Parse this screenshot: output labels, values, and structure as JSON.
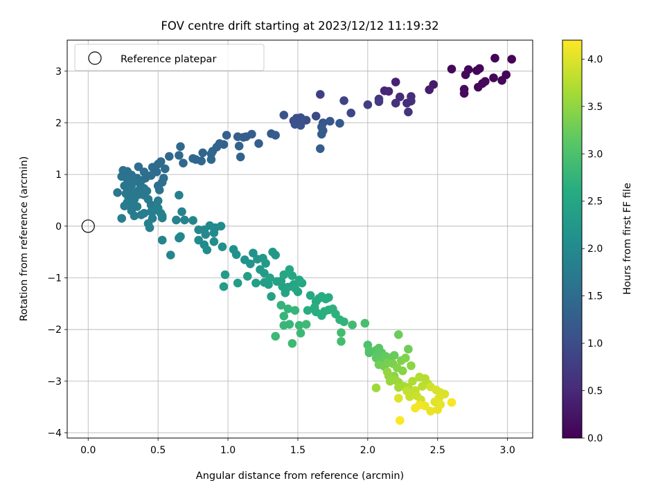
{
  "chart_data": {
    "type": "scatter",
    "title": "FOV centre drift starting at 2023/12/12 11:19:32",
    "xlabel": "Angular distance from reference (arcmin)",
    "ylabel": "Rotation from reference (arcmin)",
    "xlim": [
      -0.15,
      3.18
    ],
    "ylim": [
      -4.1,
      3.6
    ],
    "xticks": [
      0.0,
      0.5,
      1.0,
      1.5,
      2.0,
      2.5,
      3.0
    ],
    "xtick_labels": [
      "0.0",
      "0.5",
      "1.0",
      "1.5",
      "2.0",
      "2.5",
      "3.0"
    ],
    "yticks": [
      -4,
      -3,
      -2,
      -1,
      0,
      1,
      2,
      3
    ],
    "ytick_labels": [
      "−4",
      "−3",
      "−2",
      "−1",
      "0",
      "1",
      "2",
      "3"
    ],
    "grid": true,
    "legend": {
      "placement": "top-left",
      "entries": [
        "Reference platepar"
      ]
    },
    "reference_point": {
      "name": "Reference platepar",
      "x": 0.0,
      "y": 0.0
    },
    "colorbar": {
      "label": "Hours from first FF file",
      "colormap": "viridis",
      "range": [
        0.0,
        4.2
      ],
      "ticks": [
        0.0,
        0.5,
        1.0,
        1.5,
        2.0,
        2.5,
        3.0,
        3.5,
        4.0
      ],
      "tick_labels": [
        "0.0",
        "0.5",
        "1.0",
        "1.5",
        "2.0",
        "2.5",
        "3.0",
        "3.5",
        "4.0"
      ]
    },
    "points": [
      [
        2.91,
        3.25,
        0.03
      ],
      [
        3.03,
        3.23,
        0.03
      ],
      [
        2.8,
        3.05,
        0.05
      ],
      [
        2.78,
        3.01,
        0.05
      ],
      [
        2.72,
        3.03,
        0.06
      ],
      [
        2.7,
        2.93,
        0.07
      ],
      [
        2.6,
        3.04,
        0.08
      ],
      [
        2.9,
        2.87,
        0.06
      ],
      [
        2.99,
        2.93,
        0.05
      ],
      [
        2.96,
        2.82,
        0.06
      ],
      [
        2.82,
        2.76,
        0.07
      ],
      [
        2.79,
        2.69,
        0.08
      ],
      [
        2.84,
        2.8,
        0.09
      ],
      [
        2.69,
        2.65,
        0.12
      ],
      [
        2.69,
        2.57,
        0.13
      ],
      [
        2.47,
        2.74,
        0.3
      ],
      [
        2.44,
        2.64,
        0.35
      ],
      [
        2.2,
        2.79,
        0.4
      ],
      [
        2.12,
        2.62,
        0.45
      ],
      [
        2.15,
        2.61,
        0.47
      ],
      [
        2.23,
        2.5,
        0.52
      ],
      [
        2.31,
        2.51,
        0.56
      ],
      [
        2.31,
        2.42,
        0.58
      ],
      [
        2.28,
        2.38,
        0.55
      ],
      [
        2.2,
        2.38,
        0.6
      ],
      [
        2.29,
        2.21,
        0.65
      ],
      [
        2.08,
        2.46,
        0.7
      ],
      [
        2.08,
        2.41,
        0.72
      ],
      [
        2.0,
        2.35,
        0.78
      ],
      [
        1.66,
        2.55,
        0.8
      ],
      [
        1.83,
        2.43,
        0.85
      ],
      [
        1.88,
        2.19,
        0.9
      ],
      [
        1.63,
        2.13,
        0.95
      ],
      [
        1.56,
        2.05,
        1.0
      ],
      [
        1.49,
        2.09,
        1.02
      ],
      [
        1.52,
        2.1,
        1.03
      ],
      [
        1.47,
        2.04,
        1.05
      ],
      [
        1.48,
        1.97,
        1.06
      ],
      [
        1.52,
        1.95,
        1.08
      ],
      [
        1.52,
        2.0,
        1.08
      ],
      [
        1.4,
        2.15,
        1.1
      ],
      [
        1.49,
        2.03,
        1.05
      ],
      [
        1.68,
        2.0,
        1.12
      ],
      [
        1.73,
        2.03,
        1.15
      ],
      [
        1.8,
        1.99,
        1.18
      ],
      [
        1.67,
        1.92,
        1.2
      ],
      [
        1.68,
        1.85,
        1.22
      ],
      [
        1.67,
        1.78,
        1.23
      ],
      [
        1.66,
        1.5,
        1.24
      ],
      [
        1.31,
        1.79,
        1.2
      ],
      [
        1.34,
        1.76,
        1.22
      ],
      [
        1.17,
        1.78,
        1.24
      ],
      [
        1.13,
        1.73,
        1.25
      ],
      [
        1.07,
        1.73,
        1.26
      ],
      [
        1.11,
        1.72,
        1.27
      ],
      [
        1.22,
        1.6,
        1.28
      ],
      [
        0.99,
        1.76,
        1.3
      ],
      [
        0.97,
        1.58,
        1.32
      ],
      [
        0.94,
        1.6,
        1.33
      ],
      [
        1.08,
        1.55,
        1.34
      ],
      [
        1.09,
        1.34,
        1.35
      ],
      [
        0.92,
        1.53,
        1.36
      ],
      [
        0.89,
        1.45,
        1.37
      ],
      [
        0.82,
        1.42,
        1.38
      ],
      [
        0.88,
        1.4,
        1.4
      ],
      [
        0.88,
        1.29,
        1.41
      ],
      [
        0.75,
        1.31,
        1.42
      ],
      [
        0.77,
        1.29,
        1.43
      ],
      [
        0.81,
        1.26,
        1.43
      ],
      [
        0.68,
        1.22,
        1.44
      ],
      [
        0.66,
        1.54,
        1.45
      ],
      [
        0.65,
        1.37,
        1.45
      ],
      [
        0.58,
        1.35,
        1.46
      ],
      [
        0.52,
        1.25,
        1.47
      ],
      [
        0.5,
        1.2,
        1.48
      ],
      [
        0.46,
        1.14,
        1.49
      ],
      [
        0.55,
        1.11,
        1.5
      ],
      [
        0.49,
        1.05,
        1.5
      ],
      [
        0.45,
        0.98,
        1.51
      ],
      [
        0.36,
        1.15,
        1.52
      ],
      [
        0.4,
        1.05,
        1.52
      ],
      [
        0.41,
        0.93,
        1.53
      ],
      [
        0.38,
        0.88,
        1.54
      ],
      [
        0.35,
        0.93,
        1.55
      ],
      [
        0.54,
        0.93,
        1.55
      ],
      [
        0.53,
        0.85,
        1.55
      ],
      [
        0.5,
        0.78,
        1.56
      ],
      [
        0.51,
        0.7,
        1.57
      ],
      [
        0.25,
        1.08,
        1.58
      ],
      [
        0.28,
        1.06,
        1.58
      ],
      [
        0.31,
        0.99,
        1.59
      ],
      [
        0.24,
        0.96,
        1.6
      ],
      [
        0.28,
        0.91,
        1.61
      ],
      [
        0.32,
        0.88,
        1.62
      ],
      [
        0.3,
        0.84,
        1.63
      ],
      [
        0.37,
        0.83,
        1.63
      ],
      [
        0.4,
        0.73,
        1.64
      ],
      [
        0.31,
        0.79,
        1.64
      ],
      [
        0.26,
        0.78,
        1.65
      ],
      [
        0.3,
        0.72,
        1.66
      ],
      [
        0.36,
        0.69,
        1.66
      ],
      [
        0.42,
        0.68,
        1.67
      ],
      [
        0.31,
        0.66,
        1.67
      ],
      [
        0.27,
        0.63,
        1.68
      ],
      [
        0.21,
        0.65,
        1.68
      ],
      [
        0.36,
        0.61,
        1.69
      ],
      [
        0.38,
        0.65,
        1.69
      ],
      [
        0.4,
        0.6,
        1.7
      ],
      [
        0.29,
        0.55,
        1.7
      ],
      [
        0.33,
        0.52,
        1.71
      ],
      [
        0.43,
        0.52,
        1.71
      ],
      [
        0.28,
        0.46,
        1.72
      ],
      [
        0.31,
        0.4,
        1.72
      ],
      [
        0.35,
        0.38,
        1.73
      ],
      [
        0.45,
        0.41,
        1.73
      ],
      [
        0.5,
        0.49,
        1.74
      ],
      [
        0.26,
        0.39,
        1.74
      ],
      [
        0.31,
        0.3,
        1.75
      ],
      [
        0.33,
        0.2,
        1.76
      ],
      [
        0.4,
        0.25,
        1.76
      ],
      [
        0.38,
        0.22,
        1.77
      ],
      [
        0.24,
        0.15,
        1.77
      ],
      [
        0.46,
        0.15,
        1.78
      ],
      [
        0.45,
        0.28,
        1.78
      ],
      [
        0.5,
        0.35,
        1.79
      ],
      [
        0.47,
        0.3,
        1.8
      ],
      [
        0.43,
        0.05,
        1.82
      ],
      [
        0.44,
        -0.03,
        1.83
      ],
      [
        0.53,
        0.2,
        1.83
      ],
      [
        0.52,
        0.25,
        1.84
      ],
      [
        0.53,
        0.16,
        1.85
      ],
      [
        0.65,
        0.6,
        1.85
      ],
      [
        0.67,
        0.28,
        1.86
      ],
      [
        0.63,
        0.12,
        1.87
      ],
      [
        0.69,
        0.12,
        1.88
      ],
      [
        0.75,
        0.11,
        1.9
      ],
      [
        0.53,
        -0.27,
        1.9
      ],
      [
        0.59,
        -0.56,
        1.92
      ],
      [
        0.65,
        -0.23,
        1.92
      ],
      [
        0.66,
        -0.2,
        1.93
      ],
      [
        0.79,
        -0.07,
        1.95
      ],
      [
        0.83,
        -0.07,
        1.96
      ],
      [
        0.84,
        -0.16,
        1.97
      ],
      [
        0.87,
        0.01,
        1.98
      ],
      [
        0.91,
        -0.03,
        2.0
      ],
      [
        0.9,
        -0.13,
        2.0
      ],
      [
        0.95,
        0.0,
        2.01
      ],
      [
        0.79,
        -0.27,
        2.02
      ],
      [
        0.83,
        -0.36,
        2.03
      ],
      [
        0.85,
        -0.46,
        2.04
      ],
      [
        0.9,
        -0.3,
        2.05
      ],
      [
        0.96,
        -0.4,
        2.07
      ],
      [
        1.04,
        -0.45,
        2.1
      ],
      [
        1.06,
        -0.55,
        2.12
      ],
      [
        1.12,
        -0.65,
        2.14
      ],
      [
        1.18,
        -0.52,
        2.16
      ],
      [
        1.16,
        -0.73,
        2.18
      ],
      [
        1.21,
        -0.64,
        2.2
      ],
      [
        1.25,
        -0.62,
        2.22
      ],
      [
        1.32,
        -0.5,
        2.24
      ],
      [
        1.34,
        -0.56,
        2.25
      ],
      [
        1.27,
        -0.72,
        2.26
      ],
      [
        1.23,
        -0.84,
        2.28
      ],
      [
        1.26,
        -0.91,
        2.3
      ],
      [
        0.98,
        -0.94,
        2.3
      ],
      [
        0.97,
        -1.17,
        2.32
      ],
      [
        1.07,
        -1.1,
        2.33
      ],
      [
        1.14,
        -0.97,
        2.35
      ],
      [
        1.2,
        -1.1,
        2.36
      ],
      [
        1.26,
        -1.09,
        2.37
      ],
      [
        1.29,
        -1.13,
        2.38
      ],
      [
        1.3,
        -1.0,
        2.4
      ],
      [
        1.35,
        -1.07,
        2.41
      ],
      [
        1.31,
        -1.36,
        2.42
      ],
      [
        1.38,
        -1.06,
        2.43
      ],
      [
        1.39,
        -1.17,
        2.44
      ],
      [
        1.43,
        -1.18,
        2.45
      ],
      [
        1.41,
        -1.29,
        2.46
      ],
      [
        1.47,
        -1.13,
        2.47
      ],
      [
        1.5,
        -1.27,
        2.48
      ],
      [
        1.53,
        -1.1,
        2.49
      ],
      [
        1.48,
        -1.2,
        2.5
      ],
      [
        1.4,
        -0.94,
        2.5
      ],
      [
        1.44,
        -0.84,
        2.51
      ],
      [
        1.46,
        -0.96,
        2.52
      ],
      [
        1.51,
        -1.04,
        2.53
      ],
      [
        1.59,
        -1.34,
        2.55
      ],
      [
        1.63,
        -1.46,
        2.56
      ],
      [
        1.65,
        -1.4,
        2.57
      ],
      [
        1.67,
        -1.36,
        2.58
      ],
      [
        1.7,
        -1.41,
        2.6
      ],
      [
        1.72,
        -1.38,
        2.61
      ],
      [
        1.62,
        -1.57,
        2.62
      ],
      [
        1.57,
        -1.63,
        2.63
      ],
      [
        1.63,
        -1.66,
        2.63
      ],
      [
        1.67,
        -1.73,
        2.64
      ],
      [
        1.69,
        -1.65,
        2.65
      ],
      [
        1.72,
        -1.62,
        2.66
      ],
      [
        1.75,
        -1.6,
        2.68
      ],
      [
        1.77,
        -1.7,
        2.7
      ],
      [
        1.8,
        -1.81,
        2.72
      ],
      [
        1.83,
        -1.85,
        2.74
      ],
      [
        1.38,
        -1.53,
        2.75
      ],
      [
        1.43,
        -1.6,
        2.76
      ],
      [
        1.48,
        -1.63,
        2.77
      ],
      [
        1.4,
        -1.74,
        2.78
      ],
      [
        1.44,
        -1.9,
        2.79
      ],
      [
        1.4,
        -1.92,
        2.8
      ],
      [
        1.51,
        -1.92,
        2.82
      ],
      [
        1.52,
        -2.07,
        2.83
      ],
      [
        1.34,
        -2.13,
        2.84
      ],
      [
        1.46,
        -2.27,
        2.85
      ],
      [
        1.56,
        -1.9,
        2.86
      ],
      [
        1.89,
        -1.91,
        2.88
      ],
      [
        1.81,
        -2.06,
        2.9
      ],
      [
        1.81,
        -2.23,
        2.92
      ],
      [
        1.98,
        -1.88,
        2.95
      ],
      [
        2.0,
        -2.3,
        3.0
      ],
      [
        2.01,
        -2.45,
        3.02
      ],
      [
        2.01,
        -2.4,
        3.05
      ],
      [
        2.06,
        -2.4,
        3.08
      ],
      [
        2.08,
        -2.36,
        3.1
      ],
      [
        2.07,
        -2.47,
        3.12
      ],
      [
        2.1,
        -2.45,
        3.14
      ],
      [
        2.06,
        -2.55,
        3.16
      ],
      [
        2.09,
        -2.6,
        3.18
      ],
      [
        2.13,
        -2.52,
        3.2
      ],
      [
        2.16,
        -2.55,
        3.22
      ],
      [
        2.19,
        -2.5,
        3.24
      ],
      [
        2.22,
        -2.1,
        3.26
      ],
      [
        2.29,
        -2.38,
        3.28
      ],
      [
        2.08,
        -2.68,
        3.3
      ],
      [
        2.12,
        -2.72,
        3.32
      ],
      [
        2.14,
        -2.65,
        3.34
      ],
      [
        2.18,
        -2.66,
        3.36
      ],
      [
        2.24,
        -2.6,
        3.38
      ],
      [
        2.27,
        -2.55,
        3.4
      ],
      [
        2.21,
        -2.74,
        3.42
      ],
      [
        2.25,
        -2.8,
        3.44
      ],
      [
        2.19,
        -2.9,
        3.46
      ],
      [
        2.31,
        -2.7,
        3.48
      ],
      [
        2.14,
        -2.82,
        3.5
      ],
      [
        2.15,
        -2.9,
        3.52
      ],
      [
        2.16,
        -3.0,
        3.54
      ],
      [
        2.2,
        -2.98,
        3.56
      ],
      [
        2.22,
        -3.02,
        3.58
      ],
      [
        2.06,
        -3.13,
        3.6
      ],
      [
        2.22,
        -3.12,
        3.62
      ],
      [
        2.26,
        -3.1,
        3.65
      ],
      [
        2.29,
        -3.12,
        3.68
      ],
      [
        2.32,
        -3.0,
        3.7
      ],
      [
        2.37,
        -2.92,
        3.72
      ],
      [
        2.41,
        -2.95,
        3.74
      ],
      [
        2.43,
        -3.05,
        3.76
      ],
      [
        2.39,
        -3.1,
        3.78
      ],
      [
        2.34,
        -3.18,
        3.8
      ],
      [
        2.31,
        -3.23,
        3.82
      ],
      [
        2.28,
        -3.19,
        3.84
      ],
      [
        2.3,
        -3.3,
        3.86
      ],
      [
        2.35,
        -3.28,
        3.88
      ],
      [
        2.38,
        -3.36,
        3.9
      ],
      [
        2.45,
        -3.11,
        3.92
      ],
      [
        2.49,
        -3.17,
        3.94
      ],
      [
        2.52,
        -3.22,
        3.96
      ],
      [
        2.55,
        -3.25,
        3.98
      ],
      [
        2.51,
        -3.32,
        4.0
      ],
      [
        2.48,
        -3.4,
        4.02
      ],
      [
        2.52,
        -3.45,
        4.04
      ],
      [
        2.5,
        -3.55,
        4.06
      ],
      [
        2.45,
        -3.58,
        4.08
      ],
      [
        2.41,
        -3.48,
        4.1
      ],
      [
        2.37,
        -3.46,
        4.12
      ],
      [
        2.34,
        -3.52,
        4.14
      ],
      [
        2.6,
        -3.41,
        4.16
      ],
      [
        2.22,
        -3.33,
        4.0
      ],
      [
        2.23,
        -3.76,
        4.18
      ]
    ]
  }
}
